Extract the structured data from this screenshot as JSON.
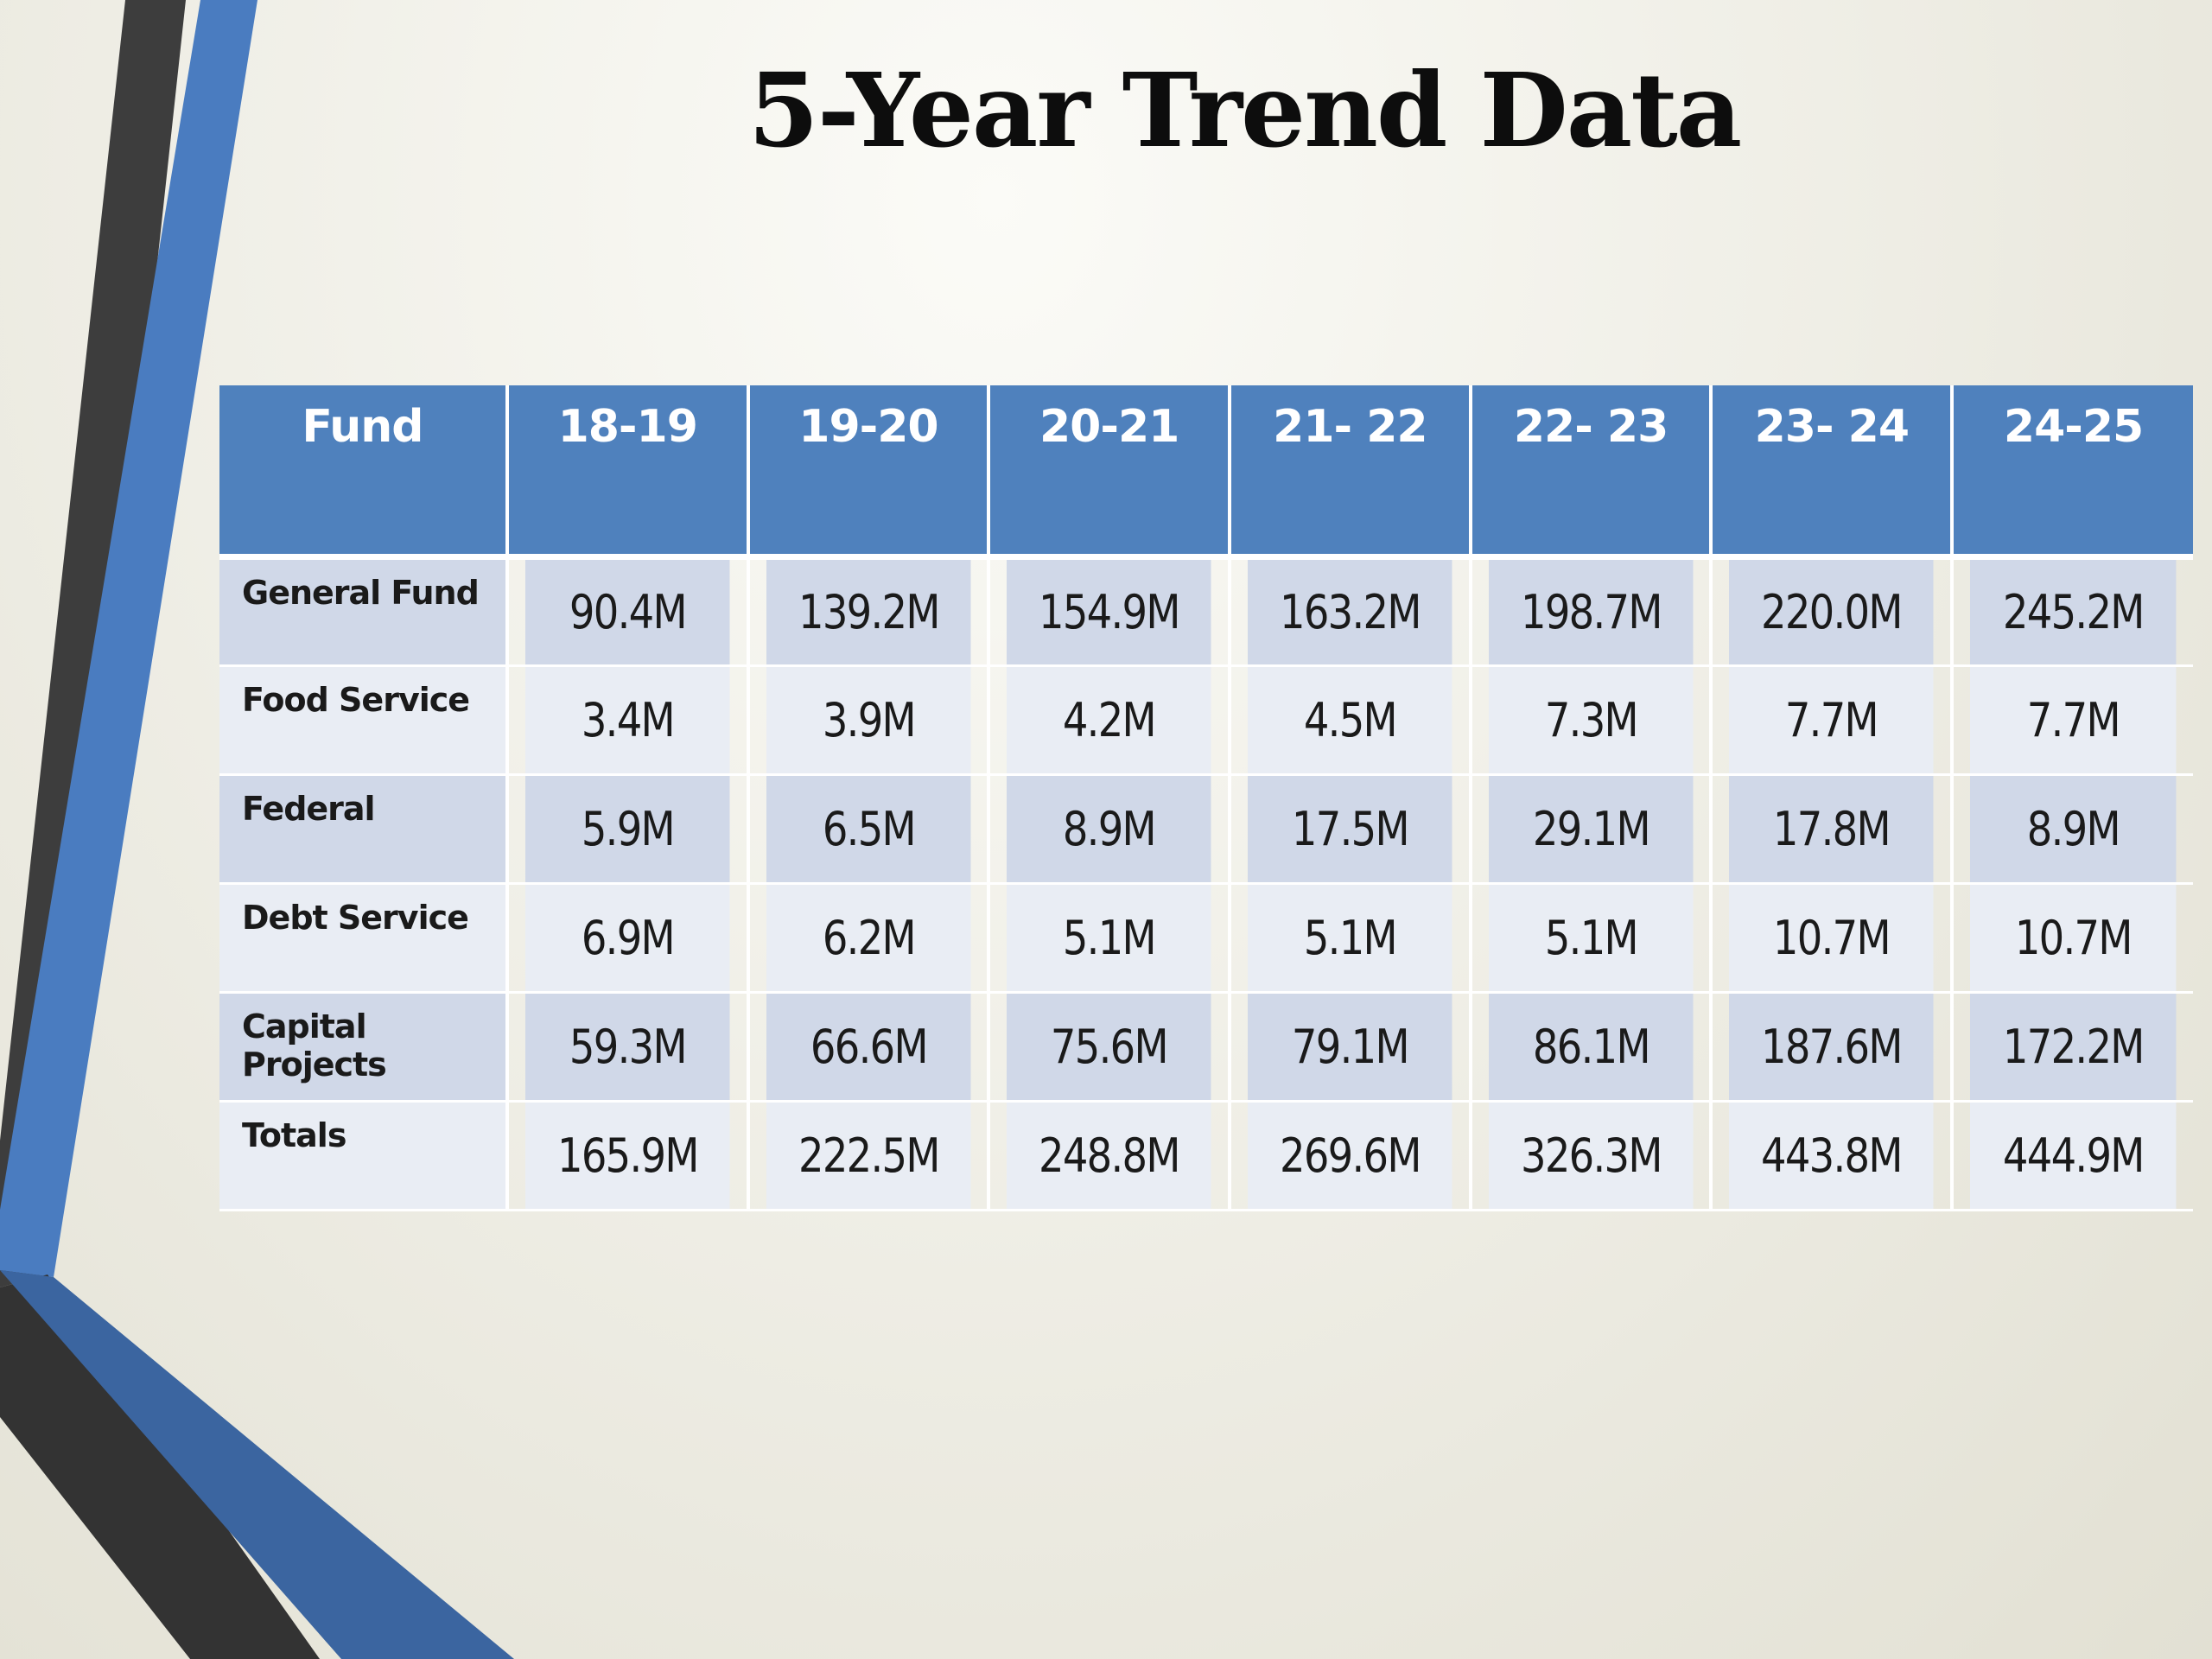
{
  "slide": {
    "title": "5-Year Trend Data"
  },
  "theme": {
    "header_bg": "#4f81bd",
    "row_odd_bg": "#d0d8e8",
    "row_even_bg": "#e9edf4",
    "accent_blue": "#4f81bd",
    "accent_dark": "#3c3c3c"
  },
  "table": {
    "headers": [
      "Fund",
      "18-19",
      "19-20",
      "20-21",
      "21- 22",
      "22- 23",
      "23- 24",
      "24-25"
    ],
    "rows": [
      {
        "fund": "General Fund",
        "values": [
          "90.4M",
          "139.2M",
          "154.9M",
          "163.2M",
          "198.7M",
          "220.0M",
          "245.2M"
        ]
      },
      {
        "fund": "Food Service",
        "values": [
          "3.4M",
          "3.9M",
          "4.2M",
          "4.5M",
          "7.3M",
          "7.7M",
          "7.7M"
        ]
      },
      {
        "fund": "Federal",
        "values": [
          "5.9M",
          "6.5M",
          "8.9M",
          "17.5M",
          "29.1M",
          "17.8M",
          "8.9M"
        ]
      },
      {
        "fund": "Debt Service",
        "values": [
          "6.9M",
          "6.2M",
          "5.1M",
          "5.1M",
          "5.1M",
          "10.7M",
          "10.7M"
        ]
      },
      {
        "fund": "Capital Projects",
        "values": [
          "59.3M",
          "66.6M",
          "75.6M",
          "79.1M",
          "86.1M",
          "187.6M",
          "172.2M"
        ]
      },
      {
        "fund": "Totals",
        "values": [
          "165.9M",
          "222.5M",
          "248.8M",
          "269.6M",
          "326.3M",
          "443.8M",
          "444.9M"
        ]
      }
    ]
  }
}
